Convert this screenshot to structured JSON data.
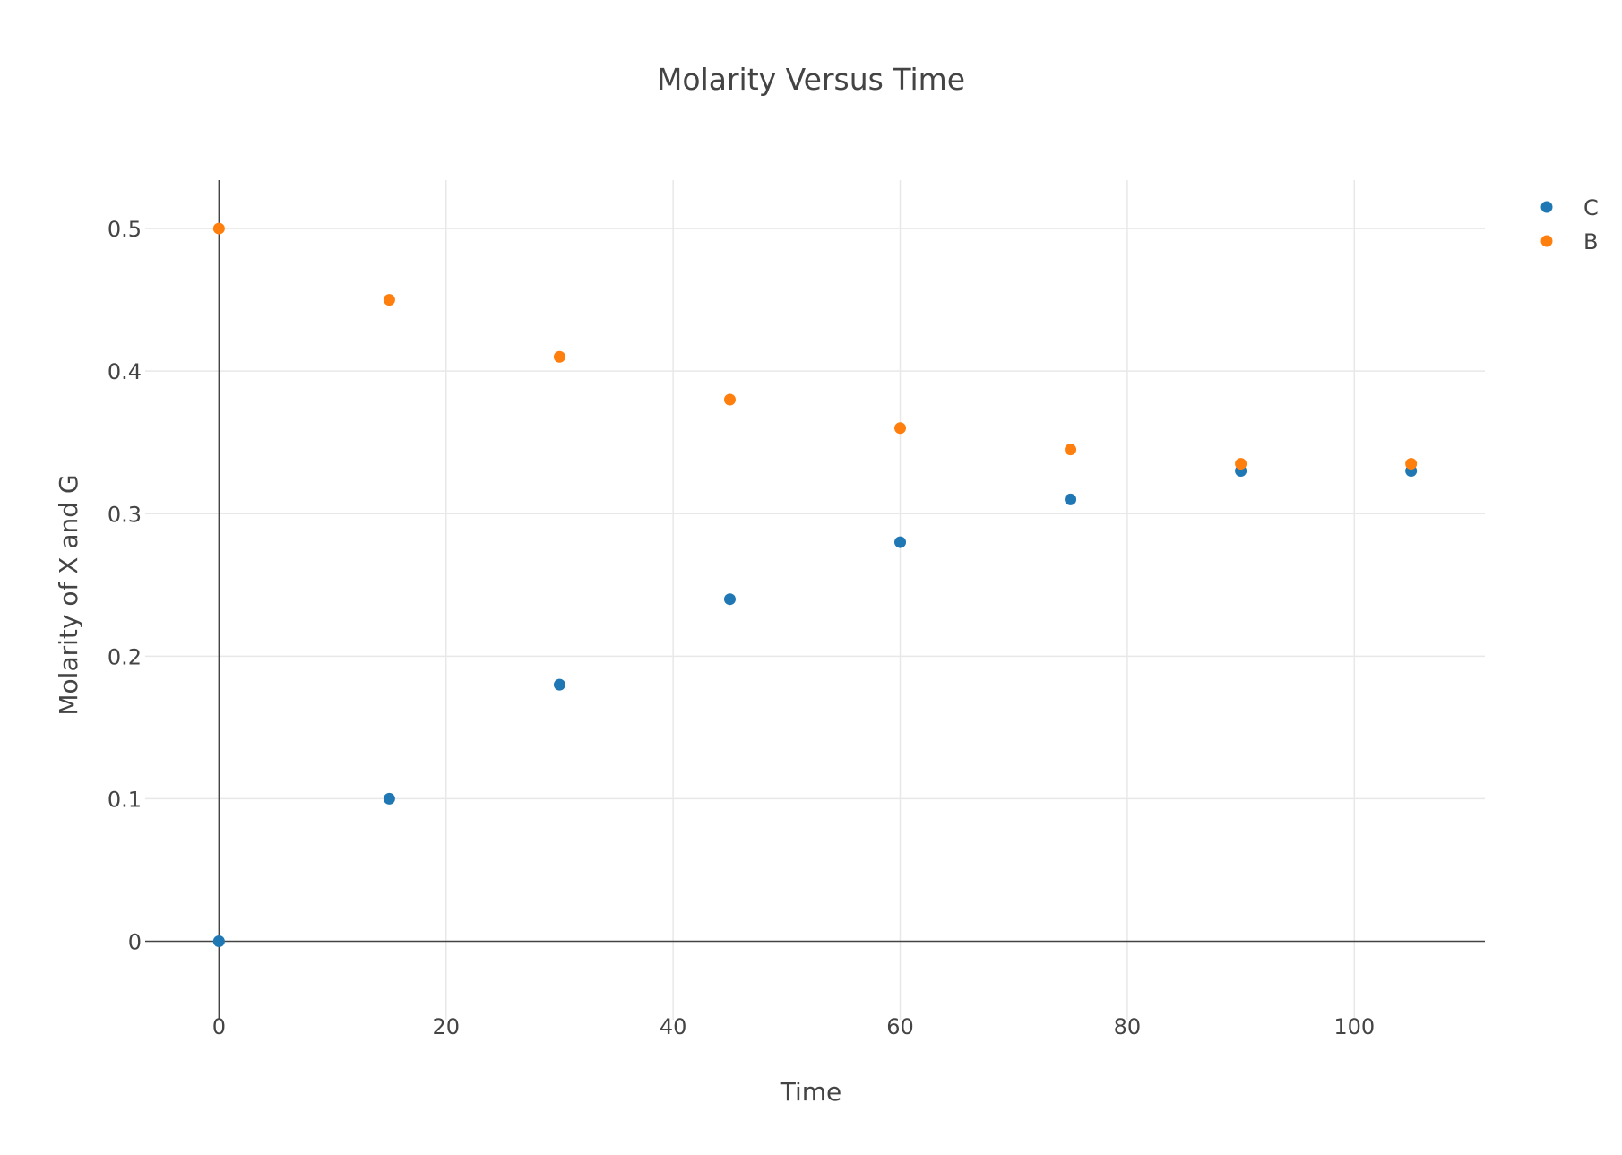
{
  "chart_data": {
    "type": "scatter",
    "title": "Molarity Versus Time",
    "xlabel": "Time",
    "ylabel": "Molarity of X and G",
    "xlim": [
      -6.5,
      111.5
    ],
    "ylim": [
      -0.055,
      0.534
    ],
    "x_ticks": [
      0,
      20,
      40,
      60,
      80,
      100
    ],
    "x_tick_labels": [
      "0",
      "20",
      "40",
      "60",
      "80",
      "100"
    ],
    "y_ticks": [
      0,
      0.1,
      0.2,
      0.3,
      0.4,
      0.5
    ],
    "y_tick_labels": [
      "0",
      "0.1",
      "0.2",
      "0.3",
      "0.4",
      "0.5"
    ],
    "grid": true,
    "legend_position": "top-right",
    "series": [
      {
        "name": "C",
        "color": "#1f77b4",
        "x": [
          0,
          15,
          30,
          45,
          60,
          75,
          90,
          105
        ],
        "y": [
          0,
          0.1,
          0.18,
          0.24,
          0.28,
          0.31,
          0.33,
          0.33
        ]
      },
      {
        "name": "B",
        "color": "#ff7f0e",
        "x": [
          0,
          15,
          30,
          45,
          60,
          75,
          90,
          105
        ],
        "y": [
          0.5,
          0.45,
          0.41,
          0.38,
          0.36,
          0.345,
          0.335,
          0.335
        ]
      }
    ]
  }
}
